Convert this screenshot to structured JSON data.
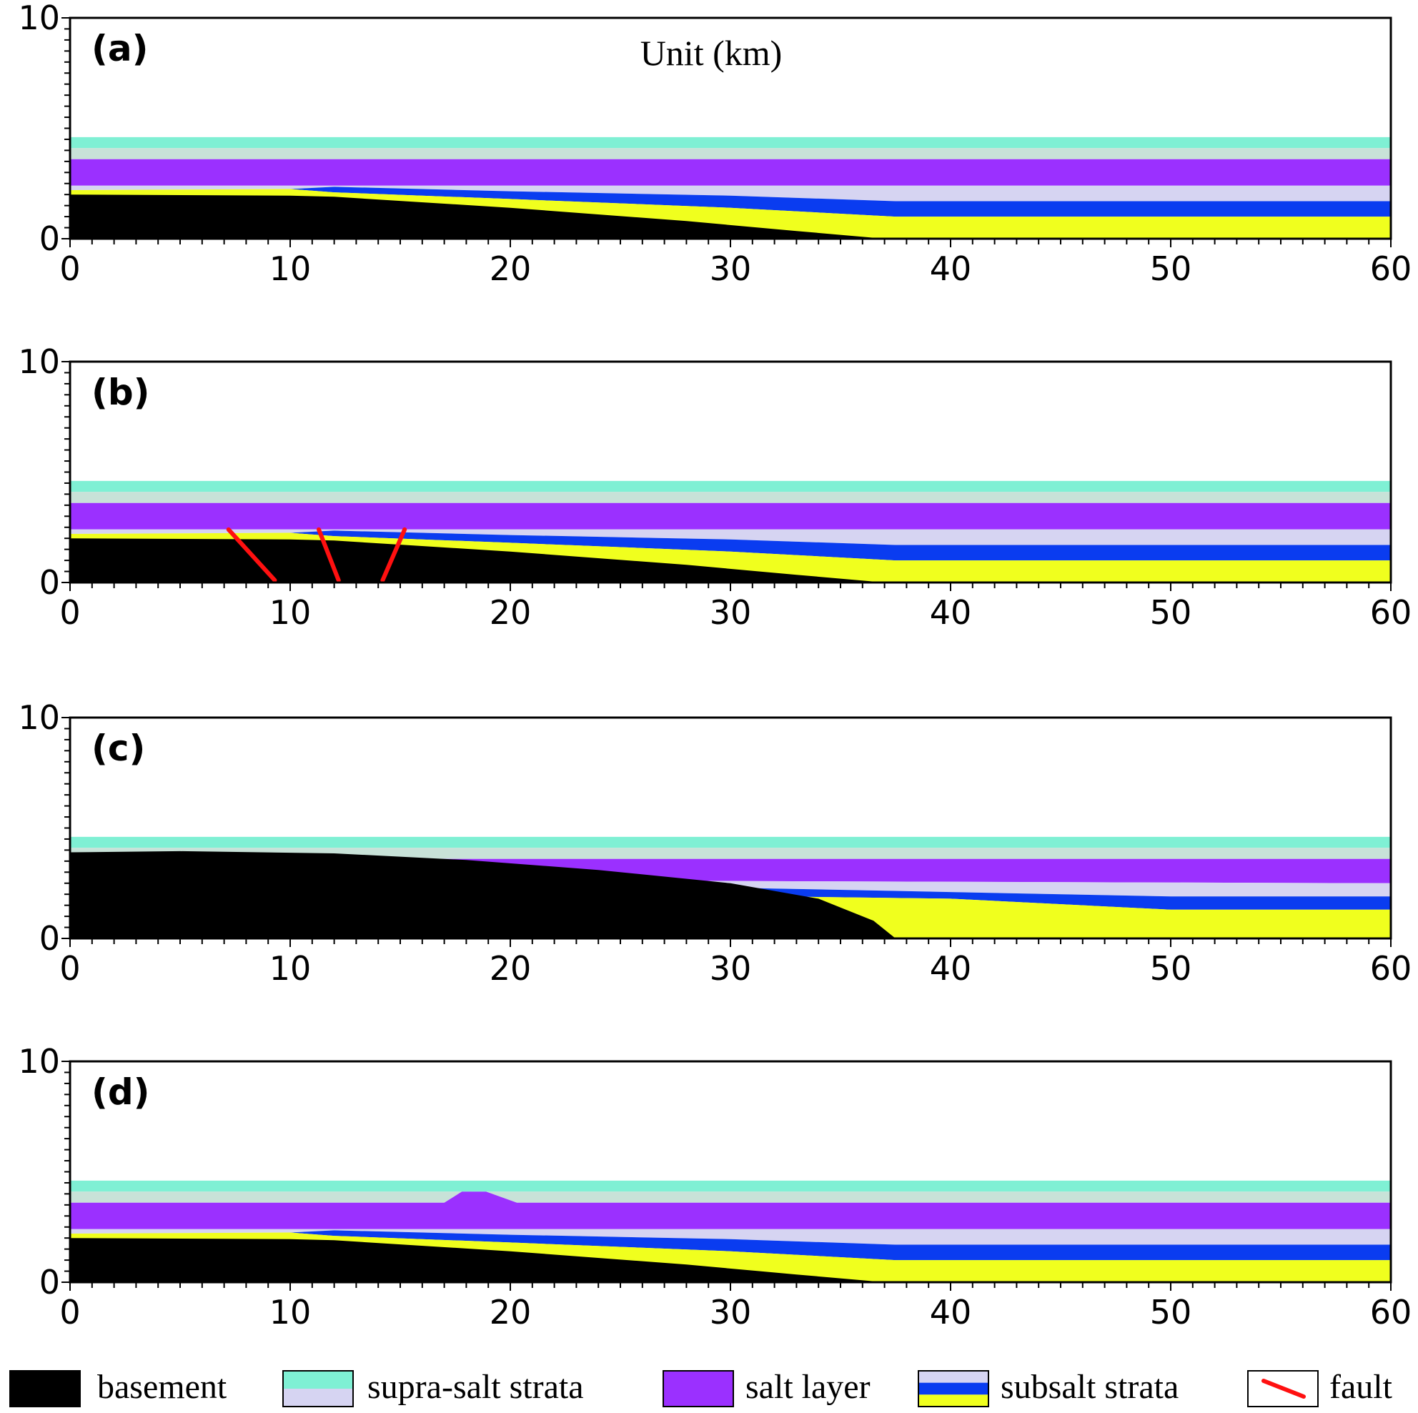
{
  "unit_label": "Unit (km)",
  "panels": [
    {
      "label": "(a)",
      "model": "base"
    },
    {
      "label": "(b)",
      "model": "faults"
    },
    {
      "label": "(c)",
      "model": "uplift"
    },
    {
      "label": "(d)",
      "model": "diapir"
    }
  ],
  "axes": {
    "x_ticks": [
      "0",
      "10",
      "20",
      "30",
      "40",
      "50",
      "60"
    ],
    "y_ticks": [
      "0",
      "10"
    ],
    "xlim": [
      0,
      60
    ],
    "ylim": [
      0,
      10
    ]
  },
  "colors": {
    "basement": "#000000",
    "supra_salt_upper": "#7ff0d4",
    "supra_salt_lower": "#d6d4f2",
    "supra_salt_band": "#c8e2d8",
    "salt": "#9b30ff",
    "subsalt_upper": "#d6d4f2",
    "subsalt_blue": "#0a3cf0",
    "subsalt_yellow": "#f0ff1e",
    "fault": "#ff1010"
  },
  "legend": [
    {
      "key": "basement",
      "label": "basement",
      "icon": "black-box"
    },
    {
      "key": "supra",
      "label": "supra-salt strata",
      "icon": "cyan-lavender-box"
    },
    {
      "key": "salt",
      "label": "salt layer",
      "icon": "purple-box"
    },
    {
      "key": "subsalt",
      "label": "subsalt strata",
      "icon": "lavender-blue-yellow-box"
    },
    {
      "key": "fault",
      "label": "fault",
      "icon": "red-line-box"
    }
  ]
}
